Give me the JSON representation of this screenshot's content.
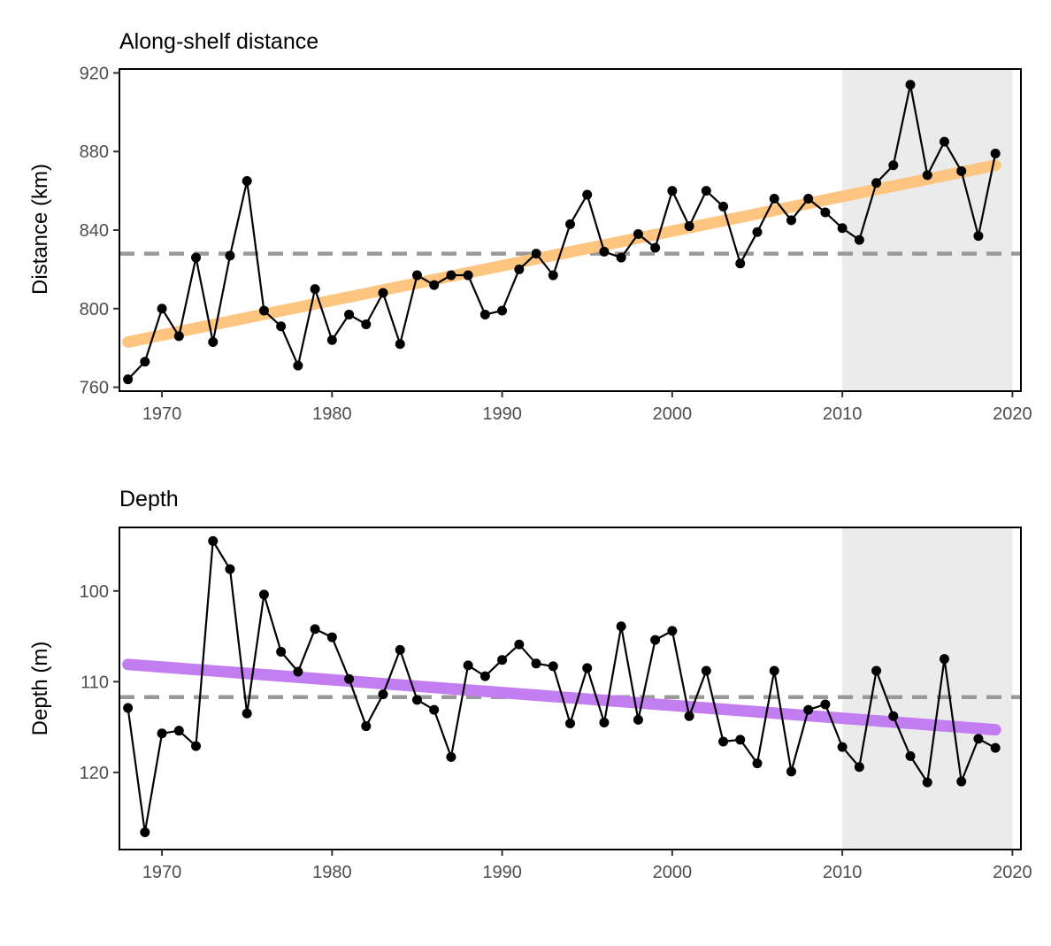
{
  "chart_data": [
    {
      "type": "line",
      "title": "Along-shelf distance",
      "xlabel": "",
      "ylabel": "Distance (km)",
      "xlim": [
        1967.5,
        2020.5
      ],
      "ylim": [
        758,
        922
      ],
      "xticks": [
        1970,
        1980,
        1990,
        2000,
        2010,
        2020
      ],
      "yticks": [
        760,
        800,
        840,
        880,
        920
      ],
      "shaded_region": {
        "x_start": 2010,
        "x_end": 2020,
        "color": "#ebebeb"
      },
      "reference_line": {
        "y": 828,
        "style": "dashed",
        "color": "#999999"
      },
      "trend_line": {
        "x": [
          1968,
          2019
        ],
        "y": [
          783,
          873
        ],
        "color": "#fdc57f"
      },
      "series": [
        {
          "x": [
            1968,
            1969,
            1970,
            1971,
            1972,
            1973,
            1974,
            1975,
            1976,
            1977,
            1978,
            1979,
            1980,
            1981,
            1982,
            1983,
            1984,
            1985,
            1986,
            1987,
            1988,
            1989,
            1990,
            1991,
            1992,
            1993,
            1994,
            1995,
            1996,
            1997,
            1998,
            1999,
            2000,
            2001,
            2002,
            2003,
            2004,
            2005,
            2006,
            2007,
            2008,
            2009,
            2010,
            2011,
            2012,
            2013,
            2014,
            2015,
            2016,
            2017,
            2018,
            2019
          ],
          "y": [
            764,
            773,
            800,
            786,
            826,
            783,
            827,
            865,
            799,
            791,
            771,
            810,
            784,
            797,
            792,
            808,
            782,
            817,
            812,
            817,
            817,
            797,
            799,
            820,
            828,
            817,
            843,
            858,
            829,
            826,
            838,
            831,
            860,
            842,
            860,
            852,
            823,
            839,
            856,
            845,
            856,
            849,
            841,
            835,
            864,
            873,
            914,
            868,
            885,
            870,
            837,
            879
          ],
          "color": "#000000"
        }
      ]
    },
    {
      "type": "line",
      "title": "Depth",
      "xlabel": "",
      "ylabel": "Depth (m)",
      "y_reversed": true,
      "xlim": [
        1967.5,
        2020.5
      ],
      "ylim": [
        93,
        128.5
      ],
      "xticks": [
        1970,
        1980,
        1990,
        2000,
        2010,
        2020
      ],
      "yticks": [
        100,
        110,
        120
      ],
      "shaded_region": {
        "x_start": 2010,
        "x_end": 2020,
        "color": "#ebebeb"
      },
      "reference_line": {
        "y": 111.7,
        "style": "dashed",
        "color": "#999999"
      },
      "trend_line": {
        "x": [
          1968,
          2019
        ],
        "y": [
          108.1,
          115.3
        ],
        "color": "#c27ef0"
      },
      "series": [
        {
          "x": [
            1968,
            1969,
            1970,
            1971,
            1972,
            1973,
            1974,
            1975,
            1976,
            1977,
            1978,
            1979,
            1980,
            1981,
            1982,
            1983,
            1984,
            1985,
            1986,
            1987,
            1988,
            1989,
            1990,
            1991,
            1992,
            1993,
            1994,
            1995,
            1996,
            1997,
            1998,
            1999,
            2000,
            2001,
            2002,
            2003,
            2004,
            2005,
            2006,
            2007,
            2008,
            2009,
            2010,
            2011,
            2012,
            2013,
            2014,
            2015,
            2016,
            2017,
            2018,
            2019
          ],
          "y": [
            112.9,
            126.6,
            115.7,
            115.4,
            117.1,
            94.5,
            97.6,
            113.5,
            100.4,
            106.7,
            108.9,
            104.2,
            105.1,
            109.7,
            114.9,
            111.4,
            106.5,
            112.0,
            113.1,
            118.3,
            108.2,
            109.4,
            107.6,
            105.9,
            108.0,
            108.3,
            114.6,
            108.5,
            114.5,
            103.9,
            114.2,
            105.4,
            104.4,
            113.8,
            108.8,
            116.6,
            116.4,
            119.0,
            108.8,
            119.9,
            113.1,
            112.5,
            117.2,
            119.4,
            108.8,
            113.8,
            118.2,
            121.1,
            107.5,
            121.0,
            116.3,
            117.3
          ],
          "color": "#000000"
        }
      ]
    }
  ]
}
